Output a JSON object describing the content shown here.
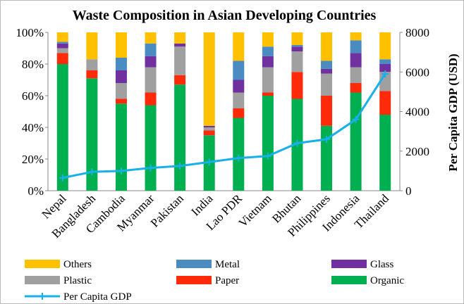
{
  "chart_data": {
    "type": "bar",
    "stacked": true,
    "title": "Waste Composition in  Asian Developing Countries",
    "y2_label": "Per Capita GDP (USD)",
    "categories": [
      "Nepal",
      "Bangladesh",
      "Cambodia",
      "Myanmar",
      "Pakistan",
      "India",
      "Lao PDR",
      "Vietnam",
      "Bhutan",
      "Philippines",
      "Indonesia",
      "Thailand"
    ],
    "series": [
      {
        "name": "Organic",
        "color": "#00b050",
        "values": [
          80,
          71,
          55,
          54,
          67,
          35,
          46,
          60,
          58,
          41,
          62,
          48
        ]
      },
      {
        "name": "Paper",
        "color": "#ff2a0a",
        "values": [
          7,
          5,
          3,
          8,
          6,
          3,
          6,
          2,
          17,
          19,
          6,
          15
        ]
      },
      {
        "name": "Plastic",
        "color": "#a0a0a0",
        "values": [
          3,
          7,
          10,
          16,
          18,
          2,
          10,
          16,
          13,
          14,
          10,
          12
        ]
      },
      {
        "name": "Glass",
        "color": "#7030a0",
        "values": [
          3,
          0,
          8,
          7,
          2,
          1,
          8,
          7,
          3,
          3,
          9,
          5
        ]
      },
      {
        "name": "Metal",
        "color": "#4a8bc2",
        "values": [
          1,
          0,
          8,
          8,
          0,
          0,
          12,
          6,
          1,
          5,
          8,
          3
        ]
      },
      {
        "name": "Others",
        "color": "#ffc000",
        "values": [
          6,
          17,
          16,
          7,
          7,
          59,
          18,
          9,
          8,
          18,
          5,
          17
        ]
      },
      {
        "name": "Per Capita GDP",
        "type": "line",
        "axis": "y2",
        "color": "#17b0e8",
        "values": [
          650,
          950,
          1000,
          1150,
          1250,
          1450,
          1650,
          1750,
          2400,
          2600,
          3600,
          5900
        ]
      }
    ],
    "ylim": [
      0,
      100
    ],
    "yticks": [
      {
        "value": 0,
        "label": "0%"
      },
      {
        "value": 20,
        "label": "20%"
      },
      {
        "value": 40,
        "label": "40%"
      },
      {
        "value": 60,
        "label": "60%"
      },
      {
        "value": 80,
        "label": "80%"
      },
      {
        "value": 100,
        "label": "100%"
      }
    ],
    "y2lim": [
      0,
      8000
    ],
    "y2ticks": [
      0,
      2000,
      4000,
      6000,
      8000
    ]
  }
}
